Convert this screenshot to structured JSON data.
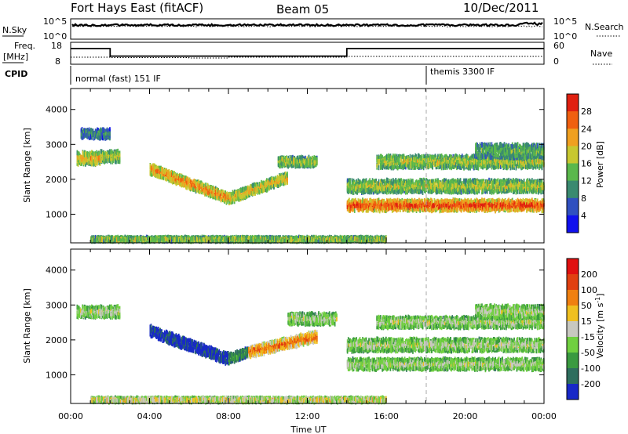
{
  "header": {
    "station": "Fort Hays East (fitACF)",
    "beam": "Beam 05",
    "date": "10/Dec/2011"
  },
  "strips": {
    "noise_left_label": "N.Sky",
    "noise_right_label": "N.Search",
    "noise_ticks": [
      "10^5",
      "10^0"
    ],
    "freq_left_label_1": "Freq.",
    "freq_left_label_2": "[MHz]",
    "freq_ticks_left": [
      "18",
      "8"
    ],
    "freq_ticks_right": [
      "60",
      "0"
    ],
    "nave_label": "Nave",
    "cpid_label": "CPID",
    "cpid_segments": [
      {
        "label": "normal (fast) 151 IF",
        "start_h": 0,
        "end_h": 18
      },
      {
        "label": "themis 3300 IF",
        "start_h": 18,
        "end_h": 24
      }
    ],
    "freq_steps": [
      {
        "start_h": 0,
        "end_h": 2,
        "mhz": 15.5
      },
      {
        "start_h": 2,
        "end_h": 14,
        "mhz": 11.5
      },
      {
        "start_h": 14,
        "end_h": 24,
        "mhz": 15.5
      }
    ]
  },
  "chart_data": [
    {
      "type": "heatmap",
      "panel": "power",
      "title": "",
      "xlabel": "",
      "ylabel": "Slant Range [km]",
      "xlim": [
        "00:00",
        "00:00"
      ],
      "ylim": [
        180,
        4600
      ],
      "x_ticks": [
        "00:00",
        "04:00",
        "08:00",
        "12:00",
        "16:00",
        "20:00",
        "00:00"
      ],
      "y_ticks": [
        "1000",
        "2000",
        "3000",
        "4000"
      ],
      "colorbar": {
        "label": "Power [dB]",
        "ticks": [
          "28",
          "24",
          "20",
          "16",
          "12",
          "8",
          "4"
        ],
        "colors": [
          "#1010ee",
          "#3050c0",
          "#3a8a70",
          "#5ab84c",
          "#c8c830",
          "#f0a020",
          "#f06010",
          "#e02010"
        ]
      },
      "bands": [
        {
          "start_h": 0.3,
          "end_h": 1.5,
          "center_km": 2600,
          "width_km": 350,
          "level": 5
        },
        {
          "start_h": 1.5,
          "end_h": 2.5,
          "center_km": 2650,
          "width_km": 300,
          "level": 4
        },
        {
          "start_h": 0.5,
          "end_h": 2.0,
          "center_km": 3300,
          "width_km": 250,
          "level": 2
        },
        {
          "start_h": 4.0,
          "end_h": 8.0,
          "center_km_start": 2300,
          "center_km_end": 1450,
          "width_km": 280,
          "level": 6
        },
        {
          "start_h": 8.0,
          "end_h": 11.0,
          "center_km_start": 1450,
          "center_km_end": 2050,
          "width_km": 280,
          "level": 5
        },
        {
          "start_h": 10.5,
          "end_h": 12.5,
          "center_km": 2500,
          "width_km": 250,
          "level": 4
        },
        {
          "start_h": 14.0,
          "end_h": 24.0,
          "center_km": 1250,
          "width_km": 300,
          "level": 7
        },
        {
          "start_h": 14.0,
          "end_h": 24.0,
          "center_km": 1800,
          "width_km": 350,
          "level": 4
        },
        {
          "start_h": 15.5,
          "end_h": 24.0,
          "center_km": 2500,
          "width_km": 350,
          "level": 4
        },
        {
          "start_h": 20.5,
          "end_h": 24.0,
          "center_km": 2800,
          "width_km": 400,
          "level": 3
        },
        {
          "start_h": 1.0,
          "end_h": 16.0,
          "center_km": 280,
          "width_km": 120,
          "level": 4
        }
      ]
    },
    {
      "type": "heatmap",
      "panel": "velocity",
      "title": "",
      "xlabel": "Time UT",
      "ylabel": "Slant Range [km]",
      "xlim": [
        "00:00",
        "00:00"
      ],
      "ylim": [
        180,
        4600
      ],
      "x_ticks": [
        "00:00",
        "04:00",
        "08:00",
        "12:00",
        "16:00",
        "20:00",
        "00:00"
      ],
      "y_ticks": [
        "1000",
        "2000",
        "3000",
        "4000"
      ],
      "colorbar": {
        "label": "Velocity [m s^-1]",
        "ticks": [
          "200",
          "100",
          "50",
          "15",
          "-15",
          "-50",
          "-100",
          "-200"
        ],
        "colors": [
          "#1828c8",
          "#2e6e5e",
          "#3a9a40",
          "#70d040",
          "#c8c8c0",
          "#f0c020",
          "#f08010",
          "#e04010",
          "#e01010"
        ]
      },
      "bands": [
        {
          "start_h": 0.3,
          "end_h": 2.5,
          "center_km": 2800,
          "width_km": 300,
          "level": 4
        },
        {
          "start_h": 4.0,
          "end_h": 8.0,
          "center_km_start": 2250,
          "center_km_end": 1450,
          "width_km": 300,
          "level": 0
        },
        {
          "start_h": 8.0,
          "end_h": 9.0,
          "center_km_start": 1450,
          "center_km_end": 1650,
          "width_km": 250,
          "level": 2
        },
        {
          "start_h": 9.0,
          "end_h": 12.5,
          "center_km_start": 1650,
          "center_km_end": 2100,
          "width_km": 300,
          "level": 7
        },
        {
          "start_h": 11.0,
          "end_h": 13.5,
          "center_km": 2600,
          "width_km": 300,
          "level": 4
        },
        {
          "start_h": 14.0,
          "end_h": 24.0,
          "center_km": 1300,
          "width_km": 300,
          "level": 4
        },
        {
          "start_h": 14.0,
          "end_h": 24.0,
          "center_km": 1850,
          "width_km": 350,
          "level": 4
        },
        {
          "start_h": 15.5,
          "end_h": 24.0,
          "center_km": 2500,
          "width_km": 300,
          "level": 4
        },
        {
          "start_h": 20.5,
          "end_h": 24.0,
          "center_km": 2800,
          "width_km": 350,
          "level": 4
        },
        {
          "start_h": 1.0,
          "end_h": 16.0,
          "center_km": 280,
          "width_km": 120,
          "level": 5
        }
      ]
    }
  ]
}
